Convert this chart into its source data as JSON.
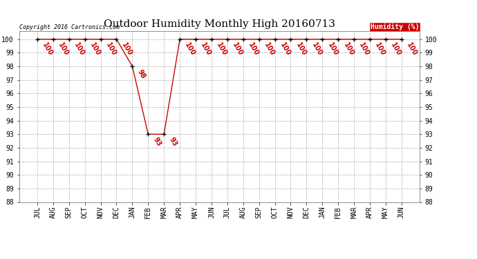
{
  "title": "Outdoor Humidity Monthly High 20160713",
  "copyright_text": "Copyright 2016 Cartronics.com",
  "legend_label": "Humidity (%)",
  "x_labels": [
    "JUL",
    "AUG",
    "SEP",
    "OCT",
    "NOV",
    "DEC",
    "JAN",
    "FEB",
    "MAR",
    "APR",
    "MAY",
    "JUN",
    "JUL",
    "AUG",
    "SEP",
    "OCT",
    "NOV",
    "DEC",
    "JAN",
    "FEB",
    "MAR",
    "APR",
    "MAY",
    "JUN"
  ],
  "y_values": [
    100,
    100,
    100,
    100,
    100,
    100,
    98,
    93,
    93,
    100,
    100,
    100,
    100,
    100,
    100,
    100,
    100,
    100,
    100,
    100,
    100,
    100,
    100,
    100
  ],
  "ylim_min": 88,
  "ylim_max": 100.6,
  "yticks": [
    88,
    89,
    90,
    91,
    92,
    93,
    94,
    95,
    96,
    97,
    98,
    99,
    100
  ],
  "line_color": "#cc0000",
  "marker_color": "#000000",
  "grid_color": "#aaaaaa",
  "bg_color": "#ffffff",
  "title_fontsize": 11,
  "tick_fontsize": 7,
  "annot_fontsize": 7,
  "copyright_fontsize": 6,
  "legend_fontsize": 7,
  "legend_bg": "#cc0000",
  "legend_text_color": "#ffffff"
}
